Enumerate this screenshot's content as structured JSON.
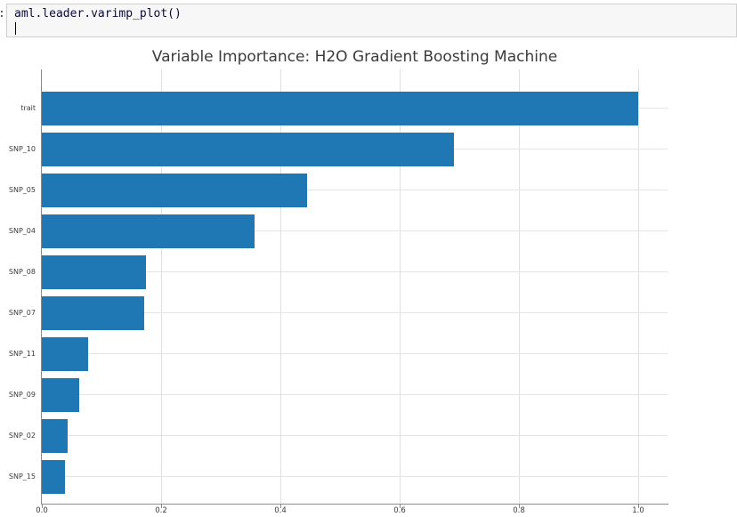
{
  "notebook": {
    "prompt_colon": ":",
    "code": "aml.leader.varimp_plot()"
  },
  "chart_data": {
    "type": "bar",
    "orientation": "horizontal",
    "title": "Variable Importance: H2O Gradient Boosting Machine",
    "categories": [
      "trait",
      "SNP_10",
      "SNP_05",
      "SNP_04",
      "SNP_08",
      "SNP_07",
      "SNP_11",
      "SNP_09",
      "SNP_02",
      "SNP_15"
    ],
    "values": [
      1.0,
      0.691,
      0.445,
      0.356,
      0.174,
      0.172,
      0.078,
      0.063,
      0.044,
      0.039
    ],
    "xlabel": "",
    "ylabel": "",
    "x_ticks": [
      0.0,
      0.2,
      0.4,
      0.6,
      0.8,
      1.0
    ],
    "x_tick_labels": [
      "0.0",
      "0.2",
      "0.4",
      "0.6",
      "0.8",
      "1.0"
    ],
    "xlim": [
      0.0,
      1.049
    ],
    "grid": true,
    "legend": false,
    "bar_color": "#1f77b4",
    "grid_color": "#e0e0e0",
    "axis_color": "#8c8c8c",
    "text_color": "#3b3b3b"
  }
}
